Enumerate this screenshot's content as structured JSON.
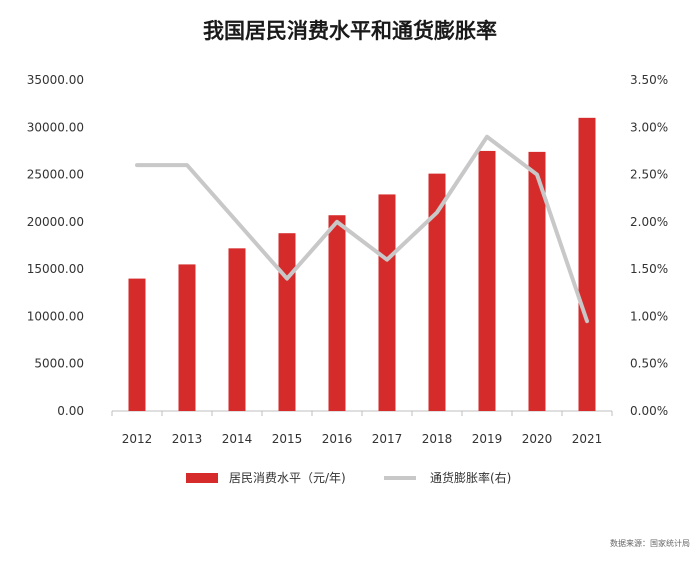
{
  "chart_data": {
    "type": "bar",
    "title": "我国居民消费水平和通货膨胀率",
    "categories": [
      "2012",
      "2013",
      "2014",
      "2015",
      "2016",
      "2017",
      "2018",
      "2019",
      "2020",
      "2021"
    ],
    "series": [
      {
        "name": "居民消费水平（元/年)",
        "type": "bar",
        "axis": "left",
        "color": "#d62b2b",
        "values": [
          14000,
          15500,
          17200,
          18800,
          20700,
          22900,
          25100,
          27500,
          27400,
          31000
        ]
      },
      {
        "name": "通货膨胀率(右)",
        "type": "line",
        "axis": "right",
        "color": "#c8c8c8",
        "values": [
          2.6,
          2.6,
          2.0,
          1.4,
          2.0,
          1.6,
          2.1,
          2.9,
          2.5,
          0.95
        ]
      }
    ],
    "y_left": {
      "ylim": [
        0,
        35000
      ],
      "ticks": [
        0,
        5000,
        10000,
        15000,
        20000,
        25000,
        30000,
        35000
      ],
      "tick_labels": [
        "0.00",
        "5000.00",
        "10000.00",
        "15000.00",
        "20000.00",
        "25000.00",
        "30000.00",
        "35000.00"
      ]
    },
    "y_right": {
      "ylim": [
        0,
        3.5
      ],
      "ticks": [
        0,
        0.5,
        1.0,
        1.5,
        2.0,
        2.5,
        3.0,
        3.5
      ],
      "tick_labels": [
        "0.00%",
        "0.50%",
        "1.00%",
        "1.50%",
        "2.00%",
        "2.50%",
        "3.00%",
        "3.50%"
      ]
    },
    "grid": false,
    "legend": "bottom"
  },
  "source": "数据来源：国家统计局"
}
